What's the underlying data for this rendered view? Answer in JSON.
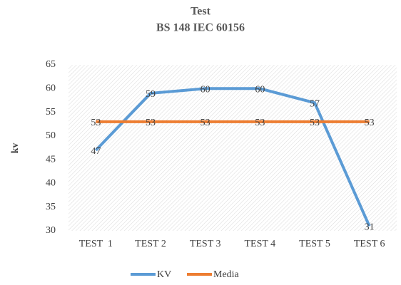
{
  "chart_data": {
    "type": "line",
    "title": "Test",
    "subtitle": "BS 148 IEC 60156",
    "y_label": "kv",
    "categories": [
      "TEST  1",
      "TEST 2",
      "TEST 3",
      "TEST 4",
      "TEST 5",
      "TEST 6"
    ],
    "series": [
      {
        "name": "KV",
        "color": "#5b9bd5",
        "values": [
          47,
          59,
          60,
          60,
          57,
          31
        ]
      },
      {
        "name": "Media",
        "color": "#ed7d31",
        "values": [
          53,
          53,
          53,
          53,
          53,
          53
        ]
      }
    ],
    "ylim": [
      30,
      65
    ],
    "yticks": [
      30,
      35,
      40,
      45,
      50,
      55,
      60,
      65
    ],
    "legend": "bottom"
  }
}
